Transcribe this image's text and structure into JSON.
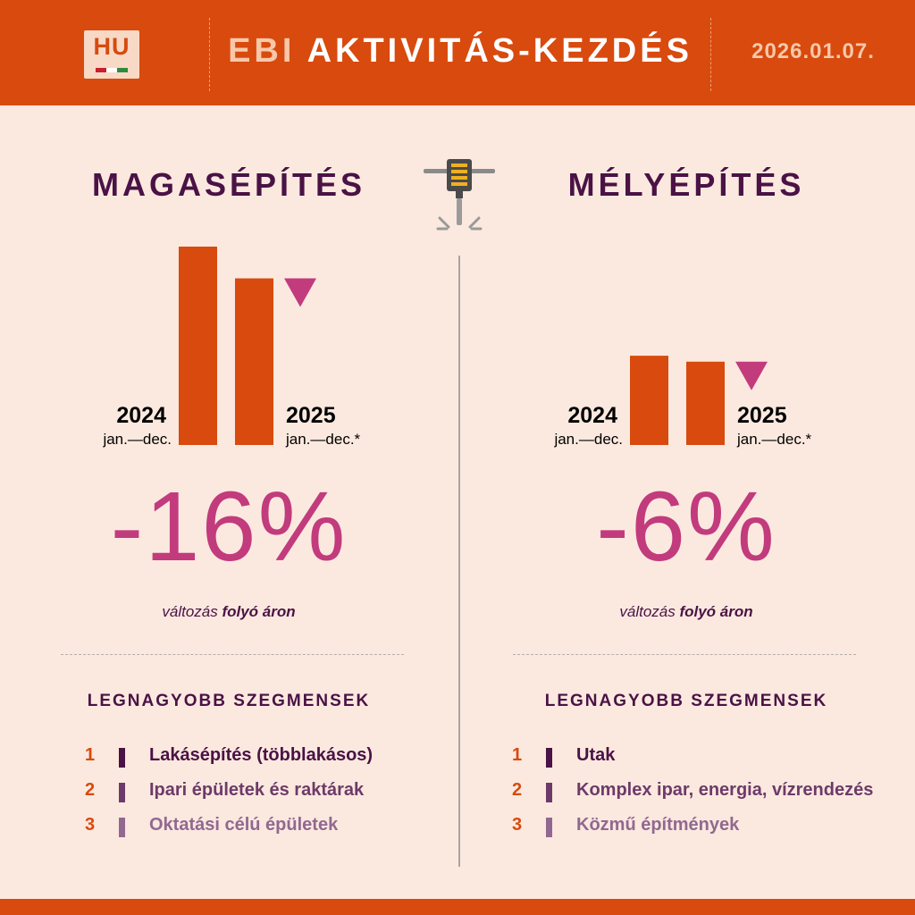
{
  "header": {
    "logo_text": "HU",
    "title_prefix": "EBI",
    "title_main": "AKTIVITÁS-KEZDÉS",
    "date": "2026.01.07."
  },
  "colors": {
    "orange": "#d84a0e",
    "magenta": "#c23b7d",
    "plum": "#4a1245",
    "background": "#fbe9df"
  },
  "icon": "jackhammer-icon",
  "panels": [
    {
      "title": "MAGASÉPÍTÉS",
      "change": "-16%",
      "change_note_pre": "változás ",
      "change_note_bold": "folyó áron",
      "segments_title": "LEGNAGYOBB SZEGMENSEK",
      "segments": [
        {
          "rank": "1",
          "label": "Lakásépítés (többlakásos)"
        },
        {
          "rank": "2",
          "label": "Ipari épületek és raktárak"
        },
        {
          "rank": "3",
          "label": "Oktatási célú épületek"
        }
      ]
    },
    {
      "title": "MÉLYÉPÍTÉS",
      "change": "-6%",
      "change_note_pre": "változás ",
      "change_note_bold": "folyó áron",
      "segments_title": "LEGNAGYOBB SZEGMENSEK",
      "segments": [
        {
          "rank": "1",
          "label": "Utak"
        },
        {
          "rank": "2",
          "label": "Komplex ipar, energia, vízrendezés"
        },
        {
          "rank": "3",
          "label": "Közmű építmények"
        }
      ]
    }
  ],
  "chart_data": [
    {
      "type": "bar",
      "categories": [
        "2024",
        "2025"
      ],
      "category_sublabels": [
        "jan.—dec.",
        "jan.—dec.*"
      ],
      "values": [
        100,
        84
      ],
      "trend": "down"
    },
    {
      "type": "bar",
      "categories": [
        "2024",
        "2025"
      ],
      "category_sublabels": [
        "jan.—dec.",
        "jan.—dec.*"
      ],
      "values": [
        45,
        42
      ],
      "trend": "down"
    }
  ]
}
